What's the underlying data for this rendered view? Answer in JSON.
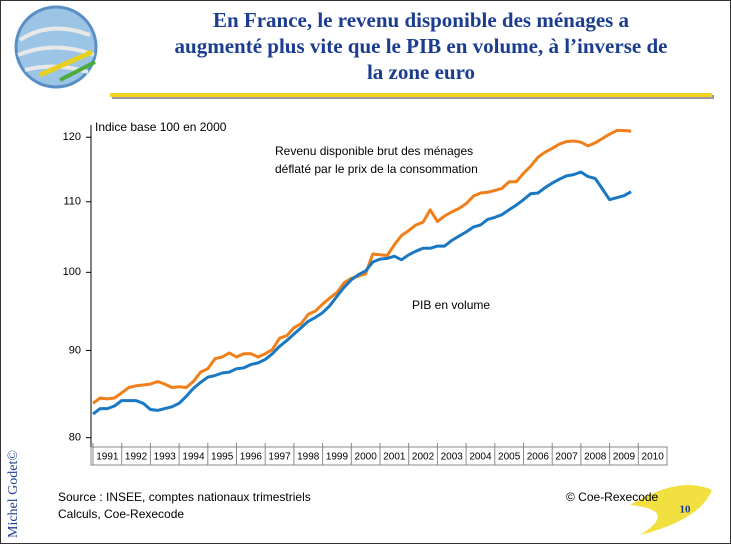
{
  "title_lines": [
    "En France, le revenu disponible des ménages a",
    "augmenté plus vite que le PIB en volume, à l’inverse de",
    "la zone euro"
  ],
  "author": "Michel Godet©",
  "page_number": "10",
  "chart_data": {
    "type": "line",
    "y_axis_label": "Indice base 100 en 2000",
    "log_scale": true,
    "ylim": [
      79,
      122
    ],
    "yticks": [
      80,
      90,
      100,
      110,
      120
    ],
    "xlim": [
      1991,
      2011
    ],
    "xticks": [
      1991,
      1992,
      1993,
      1994,
      1995,
      1996,
      1997,
      1998,
      1999,
      2000,
      2001,
      2002,
      2003,
      2004,
      2005,
      2006,
      2007,
      2008,
      2009,
      2010
    ],
    "x": [
      1991,
      1991.25,
      1991.5,
      1991.75,
      1992,
      1992.25,
      1992.5,
      1992.75,
      1993,
      1993.25,
      1993.5,
      1993.75,
      1994,
      1994.25,
      1994.5,
      1994.75,
      1995,
      1995.25,
      1995.5,
      1995.75,
      1996,
      1996.25,
      1996.5,
      1996.75,
      1997,
      1997.25,
      1997.5,
      1997.75,
      1998,
      1998.25,
      1998.5,
      1998.75,
      1999,
      1999.25,
      1999.5,
      1999.75,
      2000,
      2000.25,
      2000.5,
      2000.75,
      2001,
      2001.25,
      2001.5,
      2001.75,
      2002,
      2002.25,
      2002.5,
      2002.75,
      2003,
      2003.25,
      2003.5,
      2003.75,
      2004,
      2004.25,
      2004.5,
      2004.75,
      2005,
      2005.25,
      2005.5,
      2005.75,
      2006,
      2006.25,
      2006.5,
      2006.75,
      2007,
      2007.25,
      2007.5,
      2007.75,
      2008,
      2008.25,
      2008.5,
      2008.75,
      2009,
      2009.25,
      2009.5,
      2009.75
    ],
    "series": [
      {
        "label_lines": [
          "Revenu disponible brut des ménages",
          "déflaté par le prix de la consommation"
        ],
        "color": "#f07f1a",
        "values": [
          83.8,
          84.4,
          84.3,
          84.4,
          85.0,
          85.6,
          85.8,
          85.9,
          86.0,
          86.3,
          86.0,
          85.6,
          85.7,
          85.6,
          86.3,
          87.4,
          87.8,
          89.0,
          89.2,
          89.7,
          89.2,
          89.6,
          89.6,
          89.2,
          89.6,
          90.1,
          91.5,
          91.8,
          92.8,
          93.3,
          94.5,
          94.9,
          95.8,
          96.6,
          97.3,
          98.6,
          99.2,
          99.5,
          99.8,
          102.5,
          102.4,
          102.3,
          103.8,
          105.1,
          105.8,
          106.6,
          107.0,
          108.8,
          107.1,
          107.9,
          108.5,
          109.0,
          109.7,
          110.8,
          111.3,
          111.4,
          111.7,
          112.0,
          113.0,
          113.0,
          114.3,
          115.4,
          116.8,
          117.6,
          118.2,
          118.9,
          119.3,
          119.4,
          119.2,
          118.6,
          119.1,
          119.8,
          120.5,
          121.1,
          121.1,
          121.0
        ]
      },
      {
        "label_lines": [
          "PIB en volume"
        ],
        "color": "#1a78c2",
        "values": [
          82.6,
          83.2,
          83.2,
          83.5,
          84.1,
          84.1,
          84.1,
          83.8,
          83.1,
          83.0,
          83.2,
          83.4,
          83.8,
          84.6,
          85.5,
          86.2,
          86.8,
          87.0,
          87.3,
          87.4,
          87.8,
          87.9,
          88.3,
          88.5,
          88.9,
          89.6,
          90.5,
          91.2,
          92.0,
          92.8,
          93.6,
          94.1,
          94.7,
          95.6,
          96.8,
          98.0,
          99.0,
          99.7,
          100.2,
          101.4,
          101.8,
          101.9,
          102.2,
          101.7,
          102.4,
          102.9,
          103.3,
          103.3,
          103.6,
          103.6,
          104.4,
          105.0,
          105.6,
          106.3,
          106.6,
          107.4,
          107.7,
          108.1,
          108.8,
          109.5,
          110.3,
          111.2,
          111.3,
          112.1,
          112.8,
          113.4,
          113.9,
          114.1,
          114.5,
          113.8,
          113.5,
          111.9,
          110.3,
          110.6,
          110.9,
          111.5
        ]
      }
    ],
    "source_lines": [
      "Source : INSEE, comptes nationaux trimestriels",
      "Calculs, Coe-Rexecode"
    ],
    "credit": "© Coe-Rexecode"
  }
}
